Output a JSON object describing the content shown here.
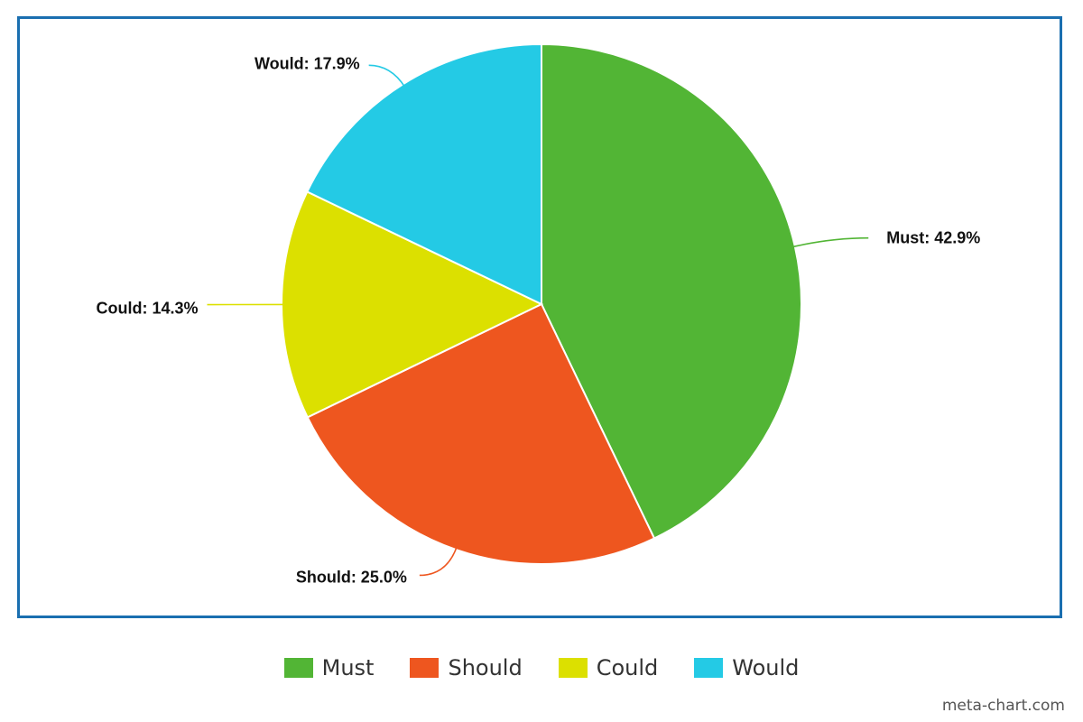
{
  "chart_data": {
    "type": "pie",
    "title": "",
    "categories": [
      "Must",
      "Should",
      "Could",
      "Would"
    ],
    "values": [
      42.9,
      25.0,
      14.3,
      17.9
    ],
    "labels": [
      "Must: 42.9%",
      "Should: 25.0%",
      "Could: 14.3%",
      "Would: 17.9%"
    ],
    "colors": [
      "#52b535",
      "#ee561f",
      "#dce000",
      "#24cae5"
    ],
    "start_angle_deg": 0,
    "direction": "clockwise",
    "legend": {
      "placement": "bottom",
      "entries": [
        "Must",
        "Should",
        "Could",
        "Would"
      ]
    }
  },
  "frame_color": "#1a6fb0",
  "watermark": "meta-chart.com"
}
